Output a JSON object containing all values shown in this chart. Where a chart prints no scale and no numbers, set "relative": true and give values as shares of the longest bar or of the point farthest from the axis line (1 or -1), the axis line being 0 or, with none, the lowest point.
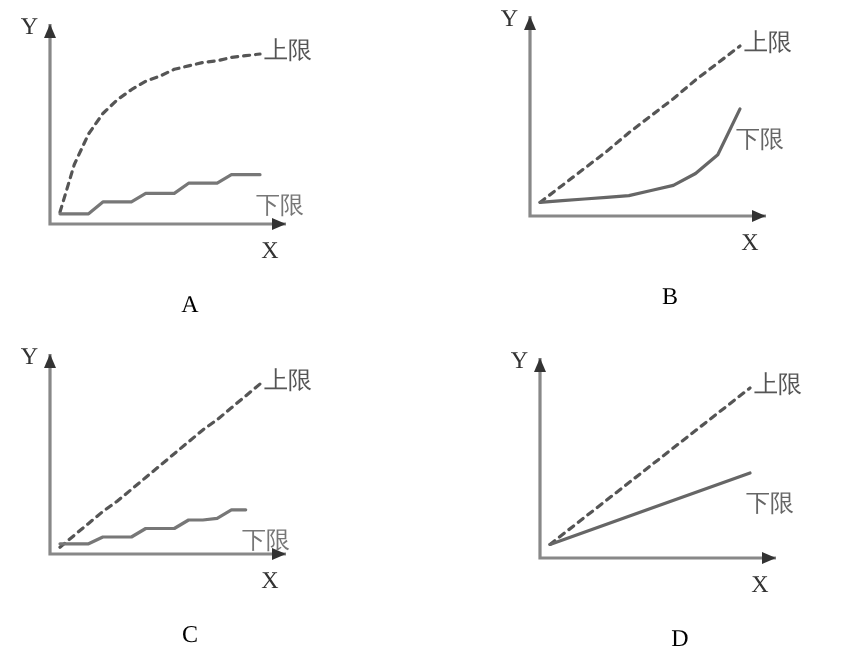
{
  "chart_data": [
    {
      "type": "line",
      "title": "A",
      "xlabel": "X",
      "ylabel": "Y",
      "relative": true,
      "categories": [
        null,
        null,
        null,
        null,
        null,
        null,
        null,
        null,
        null,
        null,
        null,
        null,
        null,
        null,
        null
      ],
      "series": [
        {
          "name": "上限",
          "color": "#555555",
          "line_style": "dashed",
          "values": [
            0.07,
            0.35,
            0.53,
            0.65,
            0.73,
            0.79,
            0.84,
            0.87,
            0.91,
            0.93,
            0.95,
            0.96,
            0.98,
            0.99,
            1
          ]
        },
        {
          "name": "下限",
          "color": "#777777",
          "line_style": "solid",
          "values": [
            0.06,
            0.06,
            0.06,
            0.13,
            0.13,
            0.13,
            0.18,
            0.18,
            0.18,
            0.24,
            0.24,
            0.24,
            0.29,
            0.29,
            0.29
          ]
        }
      ]
    },
    {
      "type": "line",
      "title": "B",
      "xlabel": "X",
      "ylabel": "Y",
      "relative": true,
      "categories": [
        null,
        null,
        null,
        null,
        null,
        null,
        null,
        null,
        null,
        null
      ],
      "series": [
        {
          "name": "上限",
          "color": "#555555",
          "line_style": "dashed",
          "values": [
            0.08,
            0.18,
            0.28,
            0.38,
            0.49,
            0.59,
            0.69,
            0.8,
            0.9,
            1
          ]
        },
        {
          "name": "下限",
          "color": "#666666",
          "line_style": "solid",
          "values": [
            0.08,
            0.09,
            0.1,
            0.11,
            0.12,
            0.15,
            0.18,
            0.25,
            0.36,
            0.63
          ]
        }
      ]
    },
    {
      "type": "line",
      "title": "C",
      "xlabel": "X",
      "ylabel": "Y",
      "relative": true,
      "categories": [
        null,
        null,
        null,
        null,
        null,
        null,
        null,
        null,
        null,
        null,
        null,
        null,
        null,
        null,
        null
      ],
      "series": [
        {
          "name": "上限",
          "color": "#555555",
          "line_style": "dashed",
          "values": [
            0.04,
            0.11,
            0.18,
            0.25,
            0.31,
            0.38,
            0.45,
            0.52,
            0.59,
            0.66,
            0.73,
            0.79,
            0.86,
            0.93,
            1
          ]
        },
        {
          "name": "下限",
          "color": "#777777",
          "line_style": "solid",
          "values": [
            0.06,
            0.06,
            0.06,
            0.1,
            0.1,
            0.1,
            0.15,
            0.15,
            0.15,
            0.2,
            0.2,
            0.21,
            0.26,
            0.26,
            null
          ]
        }
      ]
    },
    {
      "type": "line",
      "title": "D",
      "xlabel": "X",
      "ylabel": "Y",
      "relative": true,
      "categories": [
        null,
        null
      ],
      "series": [
        {
          "name": "上限",
          "color": "#555555",
          "line_style": "dashed",
          "values": [
            0.08,
            1
          ]
        },
        {
          "name": "下限",
          "color": "#666666",
          "line_style": "solid",
          "values": [
            0.08,
            0.5
          ]
        }
      ]
    }
  ]
}
